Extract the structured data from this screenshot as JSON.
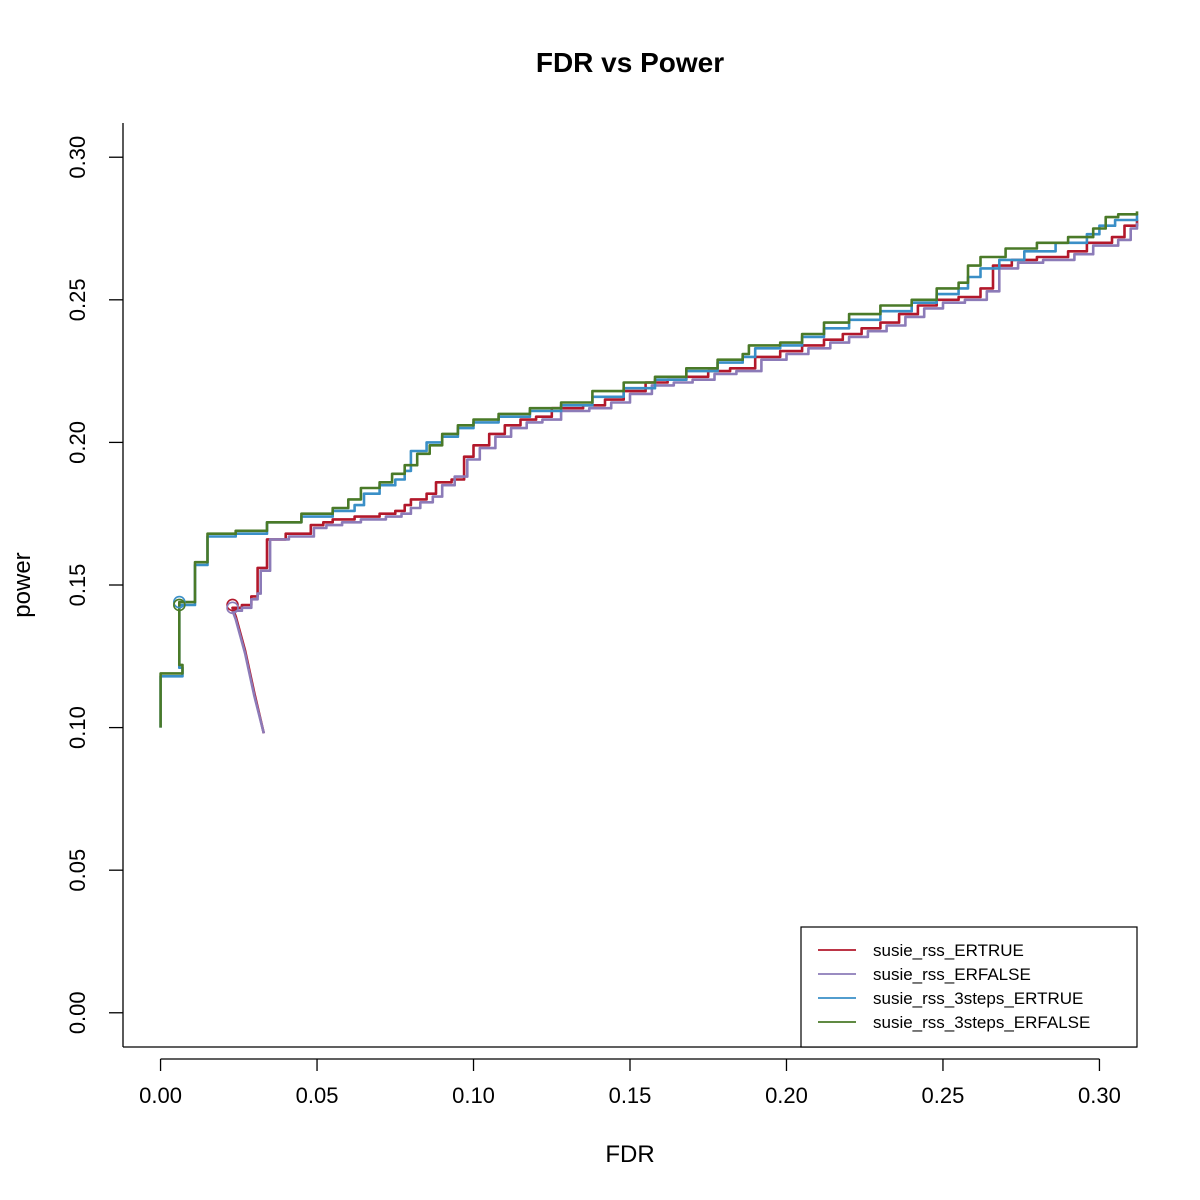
{
  "chart_data": {
    "type": "line",
    "title": "FDR vs Power",
    "xlabel": "FDR",
    "ylabel": "power",
    "xlim": [
      -0.012,
      0.312
    ],
    "ylim": [
      -0.012,
      0.312
    ],
    "xticks": [
      0.0,
      0.05,
      0.1,
      0.15,
      0.2,
      0.25,
      0.3
    ],
    "xtick_labels": [
      "0.00",
      "0.05",
      "0.10",
      "0.15",
      "0.20",
      "0.25",
      "0.30"
    ],
    "yticks": [
      0.0,
      0.05,
      0.1,
      0.15,
      0.2,
      0.25,
      0.3
    ],
    "ytick_labels": [
      "0.00",
      "0.05",
      "0.10",
      "0.15",
      "0.20",
      "0.25",
      "0.30"
    ],
    "legend_position": "bottom-right",
    "series": [
      {
        "name": "susie_rss_ERTRUE",
        "color": "#B2182B",
        "points": [
          [
            0.033,
            0.098
          ],
          [
            0.03,
            0.112
          ],
          [
            0.027,
            0.127
          ],
          [
            0.024,
            0.139
          ],
          [
            0.023,
            0.142
          ],
          [
            0.026,
            0.143
          ],
          [
            0.029,
            0.146
          ],
          [
            0.031,
            0.148
          ],
          [
            0.031,
            0.156
          ],
          [
            0.034,
            0.157
          ],
          [
            0.034,
            0.166
          ],
          [
            0.04,
            0.168
          ],
          [
            0.048,
            0.171
          ],
          [
            0.052,
            0.172
          ],
          [
            0.055,
            0.173
          ],
          [
            0.062,
            0.174
          ],
          [
            0.07,
            0.175
          ],
          [
            0.075,
            0.176
          ],
          [
            0.078,
            0.178
          ],
          [
            0.08,
            0.18
          ],
          [
            0.085,
            0.182
          ],
          [
            0.088,
            0.186
          ],
          [
            0.093,
            0.187
          ],
          [
            0.097,
            0.195
          ],
          [
            0.1,
            0.199
          ],
          [
            0.105,
            0.203
          ],
          [
            0.11,
            0.206
          ],
          [
            0.115,
            0.208
          ],
          [
            0.12,
            0.209
          ],
          [
            0.125,
            0.212
          ],
          [
            0.135,
            0.213
          ],
          [
            0.142,
            0.215
          ],
          [
            0.148,
            0.218
          ],
          [
            0.155,
            0.221
          ],
          [
            0.162,
            0.222
          ],
          [
            0.168,
            0.223
          ],
          [
            0.175,
            0.225
          ],
          [
            0.182,
            0.226
          ],
          [
            0.19,
            0.23
          ],
          [
            0.198,
            0.232
          ],
          [
            0.205,
            0.234
          ],
          [
            0.212,
            0.236
          ],
          [
            0.218,
            0.238
          ],
          [
            0.224,
            0.24
          ],
          [
            0.23,
            0.242
          ],
          [
            0.236,
            0.245
          ],
          [
            0.242,
            0.248
          ],
          [
            0.248,
            0.25
          ],
          [
            0.255,
            0.251
          ],
          [
            0.262,
            0.254
          ],
          [
            0.266,
            0.262
          ],
          [
            0.272,
            0.264
          ],
          [
            0.28,
            0.265
          ],
          [
            0.29,
            0.267
          ],
          [
            0.296,
            0.27
          ],
          [
            0.304,
            0.272
          ],
          [
            0.308,
            0.276
          ],
          [
            0.312,
            0.278
          ]
        ]
      },
      {
        "name": "susie_rss_ERFALSE",
        "color": "#8C7BB8",
        "points": [
          [
            0.033,
            0.098
          ],
          [
            0.03,
            0.111
          ],
          [
            0.027,
            0.126
          ],
          [
            0.024,
            0.138
          ],
          [
            0.023,
            0.141
          ],
          [
            0.026,
            0.142
          ],
          [
            0.029,
            0.145
          ],
          [
            0.031,
            0.147
          ],
          [
            0.032,
            0.155
          ],
          [
            0.035,
            0.156
          ],
          [
            0.035,
            0.166
          ],
          [
            0.041,
            0.167
          ],
          [
            0.049,
            0.17
          ],
          [
            0.053,
            0.171
          ],
          [
            0.058,
            0.172
          ],
          [
            0.064,
            0.173
          ],
          [
            0.072,
            0.174
          ],
          [
            0.077,
            0.175
          ],
          [
            0.08,
            0.177
          ],
          [
            0.083,
            0.179
          ],
          [
            0.087,
            0.181
          ],
          [
            0.09,
            0.185
          ],
          [
            0.094,
            0.188
          ],
          [
            0.098,
            0.194
          ],
          [
            0.102,
            0.198
          ],
          [
            0.107,
            0.202
          ],
          [
            0.112,
            0.205
          ],
          [
            0.117,
            0.207
          ],
          [
            0.122,
            0.208
          ],
          [
            0.128,
            0.211
          ],
          [
            0.137,
            0.212
          ],
          [
            0.144,
            0.214
          ],
          [
            0.15,
            0.217
          ],
          [
            0.157,
            0.22
          ],
          [
            0.164,
            0.221
          ],
          [
            0.17,
            0.222
          ],
          [
            0.177,
            0.224
          ],
          [
            0.184,
            0.225
          ],
          [
            0.192,
            0.229
          ],
          [
            0.2,
            0.231
          ],
          [
            0.207,
            0.233
          ],
          [
            0.214,
            0.235
          ],
          [
            0.22,
            0.237
          ],
          [
            0.226,
            0.239
          ],
          [
            0.232,
            0.241
          ],
          [
            0.238,
            0.244
          ],
          [
            0.244,
            0.247
          ],
          [
            0.25,
            0.249
          ],
          [
            0.257,
            0.25
          ],
          [
            0.264,
            0.253
          ],
          [
            0.268,
            0.261
          ],
          [
            0.274,
            0.263
          ],
          [
            0.282,
            0.264
          ],
          [
            0.292,
            0.266
          ],
          [
            0.298,
            0.269
          ],
          [
            0.306,
            0.271
          ],
          [
            0.31,
            0.275
          ],
          [
            0.312,
            0.277
          ]
        ]
      },
      {
        "name": "susie_rss_3steps_ERTRUE",
        "color": "#3A8FC7",
        "points": [
          [
            0.0,
            0.1
          ],
          [
            0.0,
            0.118
          ],
          [
            0.007,
            0.121
          ],
          [
            0.006,
            0.143
          ],
          [
            0.011,
            0.144
          ],
          [
            0.011,
            0.157
          ],
          [
            0.015,
            0.158
          ],
          [
            0.015,
            0.167
          ],
          [
            0.024,
            0.168
          ],
          [
            0.034,
            0.172
          ],
          [
            0.045,
            0.174
          ],
          [
            0.055,
            0.176
          ],
          [
            0.062,
            0.178
          ],
          [
            0.065,
            0.182
          ],
          [
            0.07,
            0.185
          ],
          [
            0.075,
            0.187
          ],
          [
            0.078,
            0.19
          ],
          [
            0.08,
            0.197
          ],
          [
            0.085,
            0.2
          ],
          [
            0.09,
            0.202
          ],
          [
            0.095,
            0.205
          ],
          [
            0.1,
            0.207
          ],
          [
            0.108,
            0.209
          ],
          [
            0.118,
            0.211
          ],
          [
            0.128,
            0.213
          ],
          [
            0.138,
            0.216
          ],
          [
            0.148,
            0.219
          ],
          [
            0.158,
            0.222
          ],
          [
            0.168,
            0.225
          ],
          [
            0.178,
            0.228
          ],
          [
            0.186,
            0.23
          ],
          [
            0.19,
            0.233
          ],
          [
            0.198,
            0.234
          ],
          [
            0.205,
            0.237
          ],
          [
            0.212,
            0.24
          ],
          [
            0.22,
            0.243
          ],
          [
            0.23,
            0.246
          ],
          [
            0.24,
            0.249
          ],
          [
            0.248,
            0.252
          ],
          [
            0.255,
            0.254
          ],
          [
            0.258,
            0.258
          ],
          [
            0.262,
            0.261
          ],
          [
            0.268,
            0.264
          ],
          [
            0.276,
            0.267
          ],
          [
            0.286,
            0.27
          ],
          [
            0.296,
            0.273
          ],
          [
            0.3,
            0.276
          ],
          [
            0.305,
            0.278
          ],
          [
            0.312,
            0.28
          ]
        ]
      },
      {
        "name": "susie_rss_3steps_ERFALSE",
        "color": "#4A7A28",
        "points": [
          [
            0.0,
            0.1
          ],
          [
            0.0,
            0.119
          ],
          [
            0.007,
            0.122
          ],
          [
            0.006,
            0.144
          ],
          [
            0.011,
            0.145
          ],
          [
            0.011,
            0.158
          ],
          [
            0.015,
            0.159
          ],
          [
            0.015,
            0.168
          ],
          [
            0.024,
            0.169
          ],
          [
            0.034,
            0.172
          ],
          [
            0.045,
            0.175
          ],
          [
            0.055,
            0.177
          ],
          [
            0.06,
            0.18
          ],
          [
            0.064,
            0.184
          ],
          [
            0.07,
            0.186
          ],
          [
            0.074,
            0.189
          ],
          [
            0.078,
            0.192
          ],
          [
            0.082,
            0.196
          ],
          [
            0.086,
            0.199
          ],
          [
            0.09,
            0.203
          ],
          [
            0.095,
            0.206
          ],
          [
            0.1,
            0.208
          ],
          [
            0.108,
            0.21
          ],
          [
            0.118,
            0.212
          ],
          [
            0.128,
            0.214
          ],
          [
            0.138,
            0.218
          ],
          [
            0.148,
            0.221
          ],
          [
            0.158,
            0.223
          ],
          [
            0.168,
            0.226
          ],
          [
            0.178,
            0.229
          ],
          [
            0.186,
            0.231
          ],
          [
            0.188,
            0.234
          ],
          [
            0.198,
            0.235
          ],
          [
            0.205,
            0.238
          ],
          [
            0.212,
            0.242
          ],
          [
            0.22,
            0.245
          ],
          [
            0.23,
            0.248
          ],
          [
            0.24,
            0.25
          ],
          [
            0.248,
            0.254
          ],
          [
            0.255,
            0.256
          ],
          [
            0.258,
            0.262
          ],
          [
            0.262,
            0.265
          ],
          [
            0.27,
            0.268
          ],
          [
            0.28,
            0.27
          ],
          [
            0.29,
            0.272
          ],
          [
            0.298,
            0.275
          ],
          [
            0.302,
            0.279
          ],
          [
            0.306,
            0.28
          ],
          [
            0.312,
            0.281
          ]
        ]
      }
    ],
    "markers": [
      {
        "series": "susie_rss_ERTRUE",
        "x": 0.023,
        "y": 0.143,
        "color": "#B2182B"
      },
      {
        "series": "susie_rss_ERFALSE",
        "x": 0.023,
        "y": 0.142,
        "color": "#8C7BB8"
      },
      {
        "series": "susie_rss_3steps_ERTRUE",
        "x": 0.006,
        "y": 0.144,
        "color": "#3A8FC7"
      },
      {
        "series": "susie_rss_3steps_ERFALSE",
        "x": 0.006,
        "y": 0.143,
        "color": "#4A7A28"
      }
    ]
  }
}
